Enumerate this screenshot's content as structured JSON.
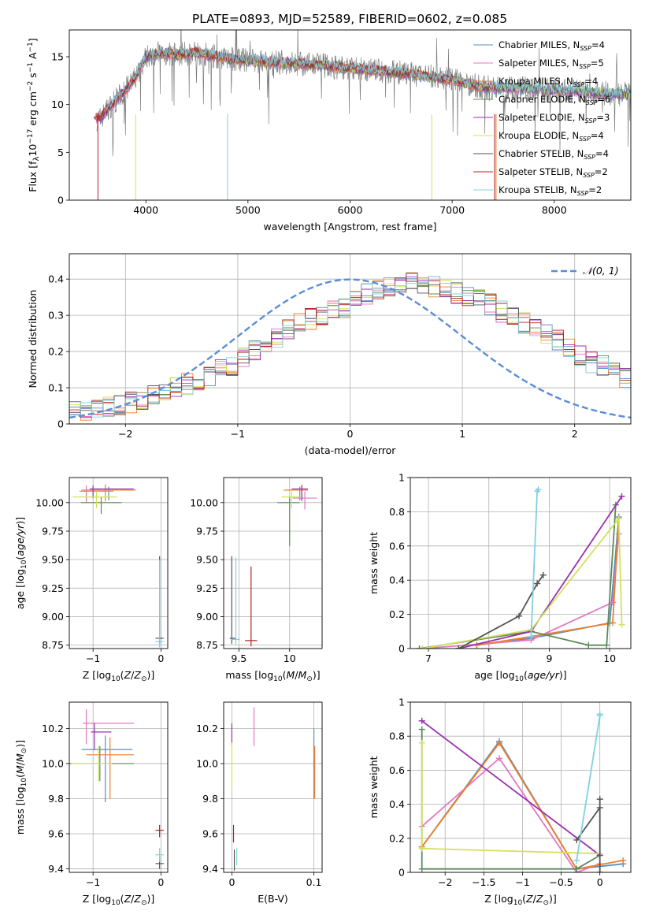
{
  "figure_title": "PLATE=0893, MJD=52589, FIBERID=0602, z=0.085",
  "chart_data": [
    {
      "id": "spectrum",
      "type": "line",
      "title": "PLATE=0893, MJD=52589, FIBERID=0602, z=0.085",
      "xlabel": "wavelength [Angstrom, rest frame]",
      "ylabel": "Flux [f_λ 10^-17 erg cm^-2 s^-1 A^-1]",
      "xlim": [
        3250,
        8750
      ],
      "ylim": [
        0,
        17.8
      ],
      "xticks": [
        4000,
        5000,
        6000,
        7000,
        8000
      ],
      "yticks": [
        0,
        5,
        10,
        15
      ],
      "grid": false,
      "legend_placement": "right",
      "continuum": {
        "x": [
          3550,
          3650,
          3800,
          3900,
          4000,
          4100,
          4300,
          4500,
          4800,
          5000,
          5300,
          5600,
          6000,
          6300,
          6600,
          7000,
          7300,
          7600,
          7900,
          8200,
          8500,
          8750
        ],
        "y": [
          8.5,
          9.8,
          11.5,
          12.8,
          15.0,
          15.4,
          15.2,
          15.4,
          14.8,
          14.6,
          14.4,
          14.2,
          13.8,
          13.5,
          13.2,
          12.6,
          11.8,
          11.8,
          11.5,
          11.4,
          11.2,
          11.0
        ]
      },
      "legend": [
        {
          "label": "Chabrier MILES, N",
          "sub": "SSP",
          "suffix": "=4",
          "color": "#5b8dbf"
        },
        {
          "label": "Salpeter MILES, N",
          "sub": "SSP",
          "suffix": "=5",
          "color": "#e377c2"
        },
        {
          "label": "Kroupa MILES, N",
          "sub": "SSP",
          "suffix": "=4",
          "color": "#f07f2a"
        },
        {
          "label": "Chabrier ELODIE, N",
          "sub": "SSP",
          "suffix": "=6",
          "color": "#5a8a5a"
        },
        {
          "label": "Salpeter ELODIE, N",
          "sub": "SSP",
          "suffix": "=3",
          "color": "#9b30b0"
        },
        {
          "label": "Kroupa ELODIE, N",
          "sub": "SSP",
          "suffix": "=4",
          "color": "#d4e157"
        },
        {
          "label": "Chabrier STELIB, N",
          "sub": "SSP",
          "suffix": "=4",
          "color": "#555555"
        },
        {
          "label": "Salpeter STELIB, N",
          "sub": "SSP",
          "suffix": "=2",
          "color": "#b22222"
        },
        {
          "label": "Kroupa STELIB, N",
          "sub": "SSP",
          "suffix": "=2",
          "color": "#80d0e0"
        }
      ]
    },
    {
      "id": "residuals",
      "type": "line",
      "xlabel": "(data-model)/error",
      "ylabel": "Normed distribution",
      "xlim": [
        -2.5,
        2.5
      ],
      "ylim": [
        0,
        0.47
      ],
      "xticks": [
        -2,
        -1,
        0,
        1,
        2
      ],
      "yticks": [
        0.0,
        0.1,
        0.2,
        0.3,
        0.4
      ],
      "grid": true,
      "legend_placement": "top-right",
      "legend_label": "𝒩(0, 1)",
      "gaussian": {
        "mean": 0,
        "sigma": 1,
        "color": "#5b8dd9"
      },
      "histogram_bins": {
        "start": -2.5,
        "width": 0.1
      },
      "histogram_mean": [
        0.035,
        0.04,
        0.045,
        0.05,
        0.055,
        0.06,
        0.07,
        0.08,
        0.085,
        0.1,
        0.11,
        0.12,
        0.13,
        0.15,
        0.16,
        0.18,
        0.2,
        0.21,
        0.24,
        0.26,
        0.28,
        0.29,
        0.3,
        0.31,
        0.32,
        0.35,
        0.36,
        0.37,
        0.38,
        0.38,
        0.39,
        0.38,
        0.38,
        0.37,
        0.36,
        0.35,
        0.34,
        0.33,
        0.31,
        0.3,
        0.28,
        0.27,
        0.25,
        0.23,
        0.21,
        0.19,
        0.17,
        0.16,
        0.14,
        0.13,
        0.11,
        0.1,
        0.09,
        0.08,
        0.07,
        0.06,
        0.055,
        0.05,
        0.04,
        0.035
      ],
      "series_colors": [
        "#5b8dbf",
        "#e377c2",
        "#f07f2a",
        "#5a8a5a",
        "#9b30b0",
        "#d4e157",
        "#555555",
        "#b22222",
        "#80d0e0"
      ]
    },
    {
      "id": "age_vs_Z",
      "type": "scatter",
      "xlabel": "Z [log10(Z/Z⊙)]",
      "ylabel": "age  [log10(age/yr)]",
      "xlim": [
        -1.35,
        0.1
      ],
      "ylim": [
        8.72,
        10.22
      ],
      "xticks": [
        -1,
        0
      ],
      "yticks": [
        8.75,
        9.0,
        9.25,
        9.5,
        9.75,
        10.0
      ],
      "yticklabels": [
        "8.75",
        "9.00",
        "9.25",
        "9.50",
        "9.75",
        "10.00"
      ],
      "grid": true,
      "points": [
        {
          "color": "#5b8dbf",
          "x": -0.77,
          "xerr": [
            0.4,
            0.4
          ],
          "y": 10.11,
          "yerr": [
            0.09,
            0.03
          ]
        },
        {
          "color": "#e377c2",
          "x": -1.1,
          "xerr": [
            0.1,
            0.4
          ],
          "y": 10.1,
          "yerr": [
            0.1,
            0.05
          ]
        },
        {
          "color": "#f07f2a",
          "x": -0.82,
          "xerr": [
            0.35,
            0.45
          ],
          "y": 10.11,
          "yerr": [
            0.1,
            0.05
          ]
        },
        {
          "color": "#5a8a5a",
          "x": -0.88,
          "xerr": [
            0.3,
            0.3
          ],
          "y": 10.0,
          "yerr": [
            0.1,
            0.05
          ]
        },
        {
          "color": "#9b30b0",
          "x": -1.0,
          "xerr": [
            0.05,
            0.6
          ],
          "y": 10.12,
          "yerr": [
            0.08,
            0.03
          ]
        },
        {
          "color": "#d4e157",
          "x": -0.95,
          "xerr": [
            0.35,
            0.3
          ],
          "y": 10.05,
          "yerr": [
            0.1,
            0.05
          ]
        },
        {
          "color": "#555555",
          "x": -0.02,
          "xerr": [
            0.06,
            0.06
          ],
          "y": 8.81,
          "yerr": [
            0.05,
            0.72
          ]
        },
        {
          "color": "#80d0e0",
          "x": -0.02,
          "xerr": [
            0.06,
            0.06
          ],
          "y": 8.78,
          "yerr": [
            0.05,
            0.72
          ]
        }
      ]
    },
    {
      "id": "age_vs_mass",
      "type": "scatter",
      "xlabel": "mass [log10(M/M⊙)]",
      "ylabel": "",
      "xlim": [
        9.35,
        10.32
      ],
      "ylim": [
        8.72,
        10.22
      ],
      "xticks": [
        9.5,
        10.0
      ],
      "yticks": [
        8.75,
        9.0,
        9.25,
        9.5,
        9.75,
        10.0
      ],
      "yticklabels": [
        "8.75",
        "9.00",
        "9.25",
        "9.50",
        "9.75",
        "10.00"
      ],
      "grid": true,
      "points": [
        {
          "color": "#5b8dbf",
          "x": 10.1,
          "xerr": [
            0.12,
            0.08
          ],
          "y": 10.11,
          "yerr": [
            0.09,
            0.03
          ]
        },
        {
          "color": "#e377c2",
          "x": 10.15,
          "xerr": [
            0.12,
            0.12
          ],
          "y": 10.04,
          "yerr": [
            0.1,
            0.06
          ]
        },
        {
          "color": "#f07f2a",
          "x": 10.12,
          "xerr": [
            0.18,
            0.06
          ],
          "y": 10.11,
          "yerr": [
            0.1,
            0.05
          ]
        },
        {
          "color": "#5a8a5a",
          "x": 10.0,
          "xerr": [
            0.12,
            0.1
          ],
          "y": 10.0,
          "yerr": [
            0.38,
            0.05
          ]
        },
        {
          "color": "#9b30b0",
          "x": 10.12,
          "xerr": [
            0.1,
            0.06
          ],
          "y": 10.12,
          "yerr": [
            0.1,
            0.03
          ]
        },
        {
          "color": "#d4e157",
          "x": 10.02,
          "xerr": [
            0.1,
            0.08
          ],
          "y": 10.05,
          "yerr": [
            0.1,
            0.05
          ]
        },
        {
          "color": "#555555",
          "x": 9.43,
          "xerr": [
            0.02,
            0.04
          ],
          "y": 8.81,
          "yerr": [
            0.05,
            0.72
          ]
        },
        {
          "color": "#b22222",
          "x": 9.62,
          "xerr": [
            0.06,
            0.06
          ],
          "y": 8.79,
          "yerr": [
            0.05,
            0.65
          ]
        },
        {
          "color": "#80d0e0",
          "x": 9.47,
          "xerr": [
            0.04,
            0.04
          ],
          "y": 8.8,
          "yerr": [
            0.05,
            0.72
          ]
        }
      ]
    },
    {
      "id": "weight_vs_age",
      "type": "line",
      "xlabel": "age  [log10(age/yr)]",
      "ylabel": "mass weight",
      "xlim": [
        6.7,
        10.35
      ],
      "ylim": [
        0,
        1.0
      ],
      "xticks": [
        7,
        8,
        9,
        10
      ],
      "yticks": [
        0.0,
        0.2,
        0.4,
        0.6,
        0.8,
        1.0
      ],
      "grid": true,
      "series": [
        {
          "color": "#5b8dbf",
          "x": [
            7.8,
            8.7,
            10.0,
            10.15
          ],
          "y": [
            0.02,
            0.06,
            0.15,
            0.77
          ]
        },
        {
          "color": "#e377c2",
          "x": [
            6.9,
            8.0,
            8.7,
            10.05,
            10.15
          ],
          "y": [
            0.0,
            0.03,
            0.05,
            0.27,
            0.67
          ]
        },
        {
          "color": "#f07f2a",
          "x": [
            7.8,
            8.7,
            10.05,
            10.15
          ],
          "y": [
            0.02,
            0.07,
            0.15,
            0.76
          ]
        },
        {
          "color": "#5a8a5a",
          "x": [
            6.85,
            8.7,
            9.65,
            9.95,
            10.1
          ],
          "y": [
            0.0,
            0.1,
            0.02,
            0.02,
            0.84
          ]
        },
        {
          "color": "#9b30b0",
          "x": [
            7.5,
            8.7,
            10.2
          ],
          "y": [
            0.0,
            0.1,
            0.89
          ]
        },
        {
          "color": "#d4e157",
          "x": [
            6.9,
            8.7,
            10.15,
            10.2
          ],
          "y": [
            0.0,
            0.11,
            0.76,
            0.14
          ]
        },
        {
          "color": "#555555",
          "x": [
            7.5,
            8.5,
            8.8,
            8.9
          ],
          "y": [
            0.0,
            0.19,
            0.38,
            0.43
          ]
        },
        {
          "color": "#80d0e0",
          "x": [
            8.7,
            8.8,
            8.82
          ],
          "y": [
            0.07,
            0.92,
            0.93
          ]
        }
      ]
    },
    {
      "id": "mass_vs_Z",
      "type": "scatter",
      "xlabel": "Z [log10(Z/Z⊙)]",
      "ylabel": "mass [log10(M/M⊙)]",
      "xlim": [
        -1.35,
        0.1
      ],
      "ylim": [
        9.38,
        10.35
      ],
      "xticks": [
        -1,
        0
      ],
      "yticks": [
        9.4,
        9.6,
        9.8,
        10.0,
        10.2
      ],
      "yticklabels": [
        "9.4",
        "9.6",
        "9.8",
        "10.0",
        "10.2"
      ],
      "grid": true,
      "points": [
        {
          "color": "#5b8dbf",
          "x": -0.82,
          "xerr": [
            0.35,
            0.4
          ],
          "y": 10.08,
          "yerr": [
            0.3,
            0.08
          ]
        },
        {
          "color": "#e377c2",
          "x": -1.1,
          "xerr": [
            0.05,
            0.7
          ],
          "y": 10.23,
          "yerr": [
            0.12,
            0.08
          ]
        },
        {
          "color": "#f07f2a",
          "x": -0.75,
          "xerr": [
            0.35,
            0.35
          ],
          "y": 10.05,
          "yerr": [
            0.25,
            0.1
          ]
        },
        {
          "color": "#5a8a5a",
          "x": -0.9,
          "xerr": [
            0.45,
            0.5
          ],
          "y": 10.0,
          "yerr": [
            0.1,
            0.1
          ]
        },
        {
          "color": "#9b30b0",
          "x": -0.98,
          "xerr": [
            0.05,
            0.25
          ],
          "y": 10.18,
          "yerr": [
            0.1,
            0.05
          ]
        },
        {
          "color": "#d4e157",
          "x": -0.92,
          "xerr": [
            0.4,
            0.2
          ],
          "y": 10.0,
          "yerr": [
            0.1,
            0.1
          ]
        },
        {
          "color": "#555555",
          "x": -0.02,
          "xerr": [
            0.06,
            0.06
          ],
          "y": 9.43,
          "yerr": [
            0.03,
            0.04
          ]
        },
        {
          "color": "#b22222",
          "x": -0.02,
          "xerr": [
            0.06,
            0.06
          ],
          "y": 9.62,
          "yerr": [
            0.04,
            0.03
          ]
        },
        {
          "color": "#80d0e0",
          "x": -0.02,
          "xerr": [
            0.06,
            0.06
          ],
          "y": 9.48,
          "yerr": [
            0.04,
            0.04
          ]
        }
      ]
    },
    {
      "id": "mass_vs_ebv",
      "type": "scatter",
      "xlabel": "E(B-V)",
      "ylabel": "",
      "xlim": [
        -0.01,
        0.11
      ],
      "ylim": [
        9.38,
        10.35
      ],
      "xticks": [
        0.0,
        0.1
      ],
      "yticks": [
        9.4,
        9.6,
        9.8,
        10.0,
        10.2
      ],
      "yticklabels": [
        "9.4",
        "9.6",
        "9.8",
        "10.0",
        "10.2"
      ],
      "grid": true,
      "points": [
        {
          "color": "#5b8dbf",
          "x": 0.1,
          "xerr": [
            0,
            0
          ],
          "y": 10.08,
          "yerr": [
            0.28,
            0.12
          ]
        },
        {
          "color": "#e377c2",
          "x": 0.027,
          "xerr": [
            0,
            0
          ],
          "y": 10.2,
          "yerr": [
            0.1,
            0.12
          ]
        },
        {
          "color": "#f07f2a",
          "x": 0.101,
          "xerr": [
            0,
            0
          ],
          "y": 10.0,
          "yerr": [
            0.2,
            0.1
          ]
        },
        {
          "color": "#9b30b0",
          "x": 0.0,
          "xerr": [
            0,
            0
          ],
          "y": 10.18,
          "yerr": [
            0.08,
            0.05
          ]
        },
        {
          "color": "#d4e157",
          "x": 0.0,
          "xerr": [
            0,
            0
          ],
          "y": 10.0,
          "yerr": [
            0.15,
            0.12
          ]
        },
        {
          "color": "#555555",
          "x": 0.003,
          "xerr": [
            0,
            0
          ],
          "y": 9.45,
          "yerr": [
            0.06,
            0.06
          ]
        },
        {
          "color": "#b22222",
          "x": 0.002,
          "xerr": [
            0,
            0
          ],
          "y": 9.6,
          "yerr": [
            0.05,
            0.05
          ]
        },
        {
          "color": "#80d0e0",
          "x": 0.006,
          "xerr": [
            0,
            0
          ],
          "y": 9.47,
          "yerr": [
            0.05,
            0.05
          ]
        }
      ]
    },
    {
      "id": "weight_vs_Z",
      "type": "line",
      "xlabel": "Z [log10(Z/Z⊙)]",
      "ylabel": "mass weight",
      "xlim": [
        -2.45,
        0.4
      ],
      "ylim": [
        0,
        1.0
      ],
      "xticks": [
        -2.0,
        -1.5,
        -1.0,
        -0.5,
        0.0
      ],
      "yticks": [
        0.0,
        0.2,
        0.4,
        0.6,
        0.8,
        1.0
      ],
      "grid": true,
      "series": [
        {
          "color": "#5b8dbf",
          "x": [
            -2.3,
            -1.3,
            -0.3,
            0.3
          ],
          "y": [
            0.15,
            0.77,
            0.02,
            0.05
          ]
        },
        {
          "color": "#e377c2",
          "x": [
            -2.3,
            -1.3,
            -0.3,
            0.0
          ],
          "y": [
            0.27,
            0.67,
            0.0,
            0.05
          ]
        },
        {
          "color": "#f07f2a",
          "x": [
            -2.3,
            -1.3,
            -0.3,
            0.3
          ],
          "y": [
            0.15,
            0.76,
            0.02,
            0.07
          ]
        },
        {
          "color": "#5a8a5a",
          "x": [
            -2.3,
            -2.3,
            -0.3,
            0.0,
            0.0
          ],
          "y": [
            0.84,
            0.02,
            0.02,
            0.1,
            0.1
          ]
        },
        {
          "color": "#9b30b0",
          "x": [
            -2.3,
            0.0
          ],
          "y": [
            0.89,
            0.1
          ]
        },
        {
          "color": "#d4e157",
          "x": [
            -2.3,
            -2.3,
            0.0
          ],
          "y": [
            0.76,
            0.14,
            0.11
          ]
        },
        {
          "color": "#555555",
          "x": [
            -0.3,
            0.0,
            0.0,
            0.0
          ],
          "y": [
            0.19,
            0.38,
            0.43,
            0.0
          ]
        },
        {
          "color": "#80d0e0",
          "x": [
            -0.3,
            0.0,
            0.0
          ],
          "y": [
            0.07,
            0.92,
            0.93
          ]
        }
      ]
    }
  ]
}
